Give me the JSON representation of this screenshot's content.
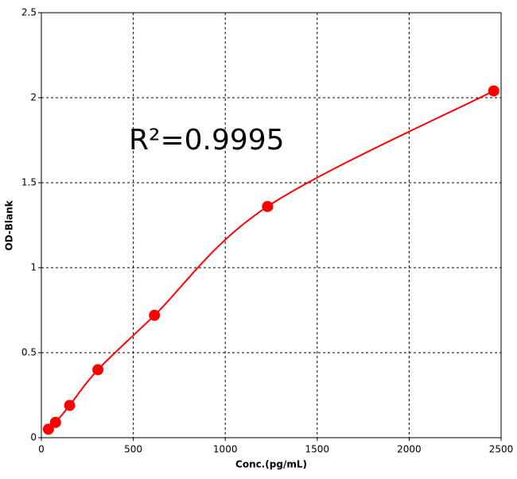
{
  "chart_data": {
    "type": "scatter",
    "xlabel": "Conc.(pg/mL)",
    "ylabel": "OD-Blank",
    "annotation": "R²=0.9995",
    "series": [
      {
        "color": "#ff0000",
        "x": [
          38.44,
          76.88,
          153.75,
          307.5,
          615,
          1230,
          2460
        ],
        "values": [
          0.05,
          0.09,
          0.19,
          0.4,
          0.72,
          1.36,
          2.04
        ]
      }
    ],
    "xlim": [
      0,
      2500
    ],
    "xticks": [
      0,
      500,
      1000,
      1500,
      2000,
      2500
    ],
    "ylim": [
      0,
      2.5
    ],
    "yticks": [
      0,
      0.5,
      1,
      1.5,
      2,
      2.5
    ],
    "grid": true,
    "fit_curve": true
  }
}
